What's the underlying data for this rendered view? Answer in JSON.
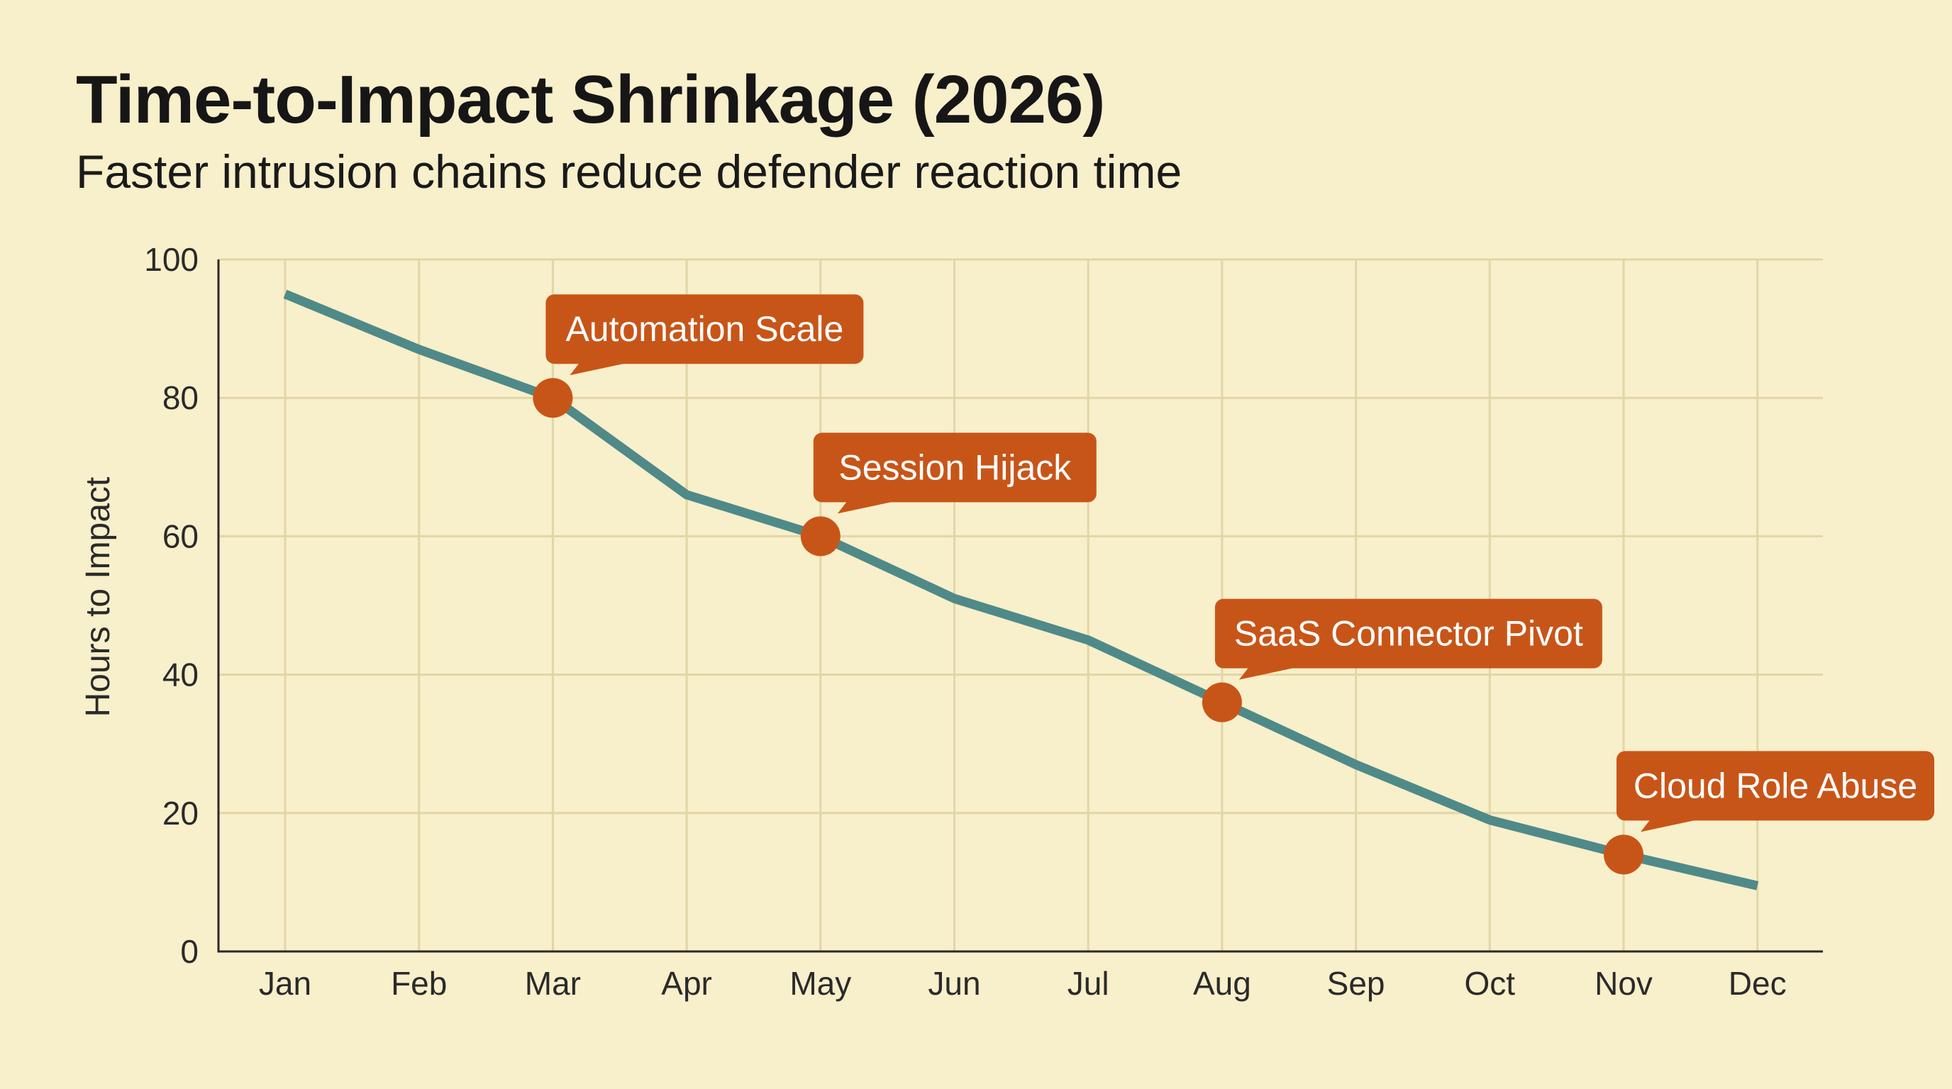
{
  "chart_data": {
    "type": "line",
    "title": "Time-to-Impact Shrinkage (2026)",
    "subtitle": "Faster intrusion chains reduce defender reaction time",
    "xlabel": "",
    "ylabel": "Hours to Impact",
    "categories": [
      "Jan",
      "Feb",
      "Mar",
      "Apr",
      "May",
      "Jun",
      "Jul",
      "Aug",
      "Sep",
      "Oct",
      "Nov",
      "Dec"
    ],
    "series": [
      {
        "values": [
          95,
          87,
          80,
          66,
          60,
          51,
          45,
          36,
          27,
          19,
          14,
          9.5
        ],
        "color": "#4f8a88"
      }
    ],
    "ylim": [
      0,
      100
    ],
    "yticks": [
      0,
      20,
      40,
      60,
      80,
      100
    ],
    "grid": true,
    "legend": "none",
    "annotations": [
      {
        "category": "Mar",
        "value": 80,
        "label": "Automation Scale"
      },
      {
        "category": "May",
        "value": 60,
        "label": "Session Hijack"
      },
      {
        "category": "Aug",
        "value": 36,
        "label": "SaaS Connector Pivot"
      },
      {
        "category": "Nov",
        "value": 14,
        "label": "Cloud Role Abuse"
      }
    ],
    "colors": {
      "background": "#f8efcb",
      "grid": "#e2d6a6",
      "axis": "#2a2a2a",
      "line": "#4f8a88",
      "marker": "#c85518",
      "callout": "#c85518",
      "callout_text": "#ffffff"
    }
  }
}
